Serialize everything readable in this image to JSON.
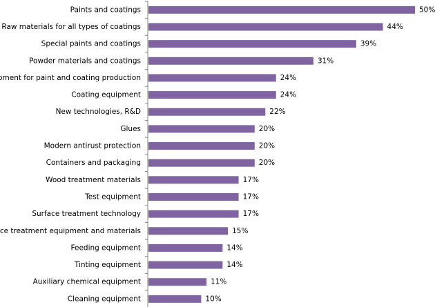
{
  "chart_data": {
    "type": "bar",
    "orientation": "horizontal",
    "title": "",
    "xlabel": "",
    "ylabel": "",
    "xlim": [
      0,
      50
    ],
    "grid": false,
    "legend": "none",
    "bar_color": "#8064A2",
    "axis_color": "#868686",
    "categories": [
      "Paints and coatings",
      "Raw materials for all types of coatings",
      "Special paints and coatings",
      "Powder materials and coatings",
      "Equipment for paint and coating production",
      "Coating equipment",
      "New technologies, R&D",
      "Glues",
      "Modern antirust protection",
      "Containers and packaging",
      "Wood treatment materials",
      "Test equipment",
      "Surface treatment technology",
      "Surface treatment equipment and materials",
      "Feeding equipment",
      "Tinting equipment",
      "Auxiliary chemical equipment",
      "Cleaning equipment"
    ],
    "values": [
      50,
      44,
      39,
      31,
      24,
      24,
      22,
      20,
      20,
      20,
      17,
      17,
      17,
      15,
      14,
      14,
      11,
      10
    ],
    "value_labels": [
      "50%",
      "44%",
      "39%",
      "31%",
      "24%",
      "24%",
      "22%",
      "20%",
      "20%",
      "20%",
      "17%",
      "17%",
      "17%",
      "15%",
      "14%",
      "14%",
      "11%",
      "10%"
    ]
  }
}
